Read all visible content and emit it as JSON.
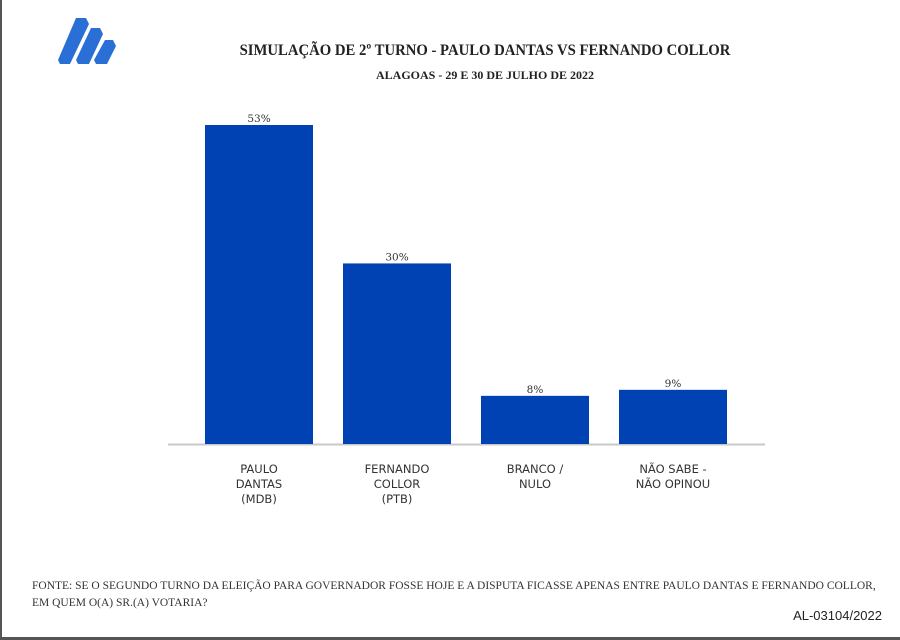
{
  "chart_data": {
    "type": "bar",
    "title": "SIMULAÇÃO DE 2º TURNO - PAULO DANTAS VS FERNANDO COLLOR",
    "subtitle": "ALAGOAS - 29 E 30 DE JULHO DE 2022",
    "categories": [
      "PAULO\nDANTAS\n(MDB)",
      "FERNANDO\nCOLLOR\n(PTB)",
      "BRANCO /\nNULO",
      "NÃO SABE  -\nNÃO OPINOU"
    ],
    "values": [
      53,
      30,
      8,
      9
    ],
    "data_labels": [
      "53%",
      "30%",
      "8%",
      "9%"
    ],
    "ylim": [
      0,
      55
    ],
    "grid": false,
    "bar_color": "#0041b3"
  },
  "footer": {
    "note": "FONTE: SE O SEGUNDO TURNO DA ELEIÇÃO PARA GOVERNADOR FOSSE HOJE E A DISPUTA FICASSE APENAS ENTRE PAULO DANTAS E FERNANDO COLLOR, EM QUEM O(A) SR.(A) VOTARIA?",
    "code": "AL-03104/2022"
  },
  "logo": {
    "icon": "stepped-parallelogram-logo",
    "color": "#2a6fd6"
  }
}
